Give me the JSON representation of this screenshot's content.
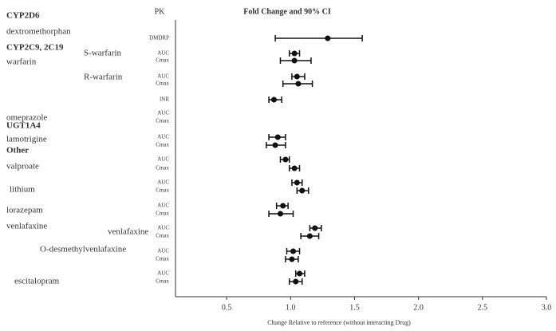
{
  "chart_data": {
    "type": "forest",
    "title": "Fold Change and 90% CI",
    "column_header": "PK",
    "xlabel": "Change Relative to reference (without interacting Drug)",
    "xlim": [
      0.1,
      3.0
    ],
    "xticks": [
      0.5,
      {
        "value": 1,
        "label": "1.0"
      },
      1.5,
      {
        "value": 2,
        "label": "2.0"
      },
      2.5,
      {
        "value": 3,
        "label": "3.0"
      }
    ],
    "color": "#111111",
    "groups": [
      {
        "text": "CYP2D6",
        "bold": true
      },
      {
        "text": "dextromethorphan",
        "bold": false
      },
      {
        "text": "CYP2C9, 2C19",
        "bold": true
      },
      {
        "text": "warfarin",
        "bold": false
      },
      {
        "text": "S-warfarin",
        "bold": false
      },
      {
        "text": "R-warfarin",
        "bold": false
      },
      {
        "text": "omeprazole",
        "bold": false
      },
      {
        "text": "UGT1A4",
        "bold": true
      },
      {
        "text": "lamotrigine",
        "bold": false
      },
      {
        "text": "Other",
        "bold": true
      },
      {
        "text": "valproate",
        "bold": false
      },
      {
        "text": "lithium",
        "bold": false
      },
      {
        "text": "lorazepam",
        "bold": false
      },
      {
        "text": "venlafaxine",
        "bold": false
      },
      {
        "text": "venlafaxine",
        "bold": false
      },
      {
        "text": "O-desmethylvenlafaxine",
        "bold": false
      },
      {
        "text": "escitalopram",
        "bold": false
      }
    ],
    "rows": [
      {
        "label": "DMDRP",
        "value": 1.29,
        "ci": [
          0.88,
          1.56
        ]
      },
      {
        "label": "AUC",
        "value": 1.03,
        "ci": [
          0.99,
          1.07
        ]
      },
      {
        "label": "Cmax",
        "value": 1.03,
        "ci": [
          0.92,
          1.16
        ]
      },
      {
        "label": "AUC",
        "value": 1.05,
        "ci": [
          1.01,
          1.11
        ]
      },
      {
        "label": "Cmax",
        "value": 1.06,
        "ci": [
          0.94,
          1.17
        ]
      },
      {
        "label": "INR",
        "value": 0.87,
        "ci": [
          0.83,
          0.93
        ]
      },
      {
        "label": "AUC",
        "value": null,
        "ci": null
      },
      {
        "label": "Cmax",
        "value": null,
        "ci": null
      },
      {
        "label": "AUC",
        "value": 0.9,
        "ci": [
          0.83,
          0.96
        ]
      },
      {
        "label": "Cmax",
        "value": 0.88,
        "ci": [
          0.81,
          0.96
        ]
      },
      {
        "label": "AUC",
        "value": 0.96,
        "ci": [
          0.92,
          0.99
        ]
      },
      {
        "label": "Cmax",
        "value": 1.03,
        "ci": [
          0.99,
          1.07
        ]
      },
      {
        "label": "AUC",
        "value": 1.05,
        "ci": [
          1.01,
          1.09
        ]
      },
      {
        "label": "Cmax",
        "value": 1.09,
        "ci": [
          1.05,
          1.14
        ]
      },
      {
        "label": "AUC",
        "value": 0.94,
        "ci": [
          0.89,
          0.98
        ]
      },
      {
        "label": "Cmax",
        "value": 0.92,
        "ci": [
          0.83,
          1.02
        ]
      },
      {
        "label": "AUC",
        "value": 1.19,
        "ci": [
          1.15,
          1.24
        ]
      },
      {
        "label": "Cmax",
        "value": 1.15,
        "ci": [
          1.08,
          1.22
        ]
      },
      {
        "label": "AUC",
        "value": 1.02,
        "ci": [
          0.97,
          1.07
        ]
      },
      {
        "label": "Cmax",
        "value": 1.01,
        "ci": [
          0.96,
          1.06
        ]
      },
      {
        "label": "AUC",
        "value": 1.07,
        "ci": [
          1.04,
          1.11
        ]
      },
      {
        "label": "Cmax",
        "value": 1.04,
        "ci": [
          0.99,
          1.09
        ]
      }
    ]
  }
}
